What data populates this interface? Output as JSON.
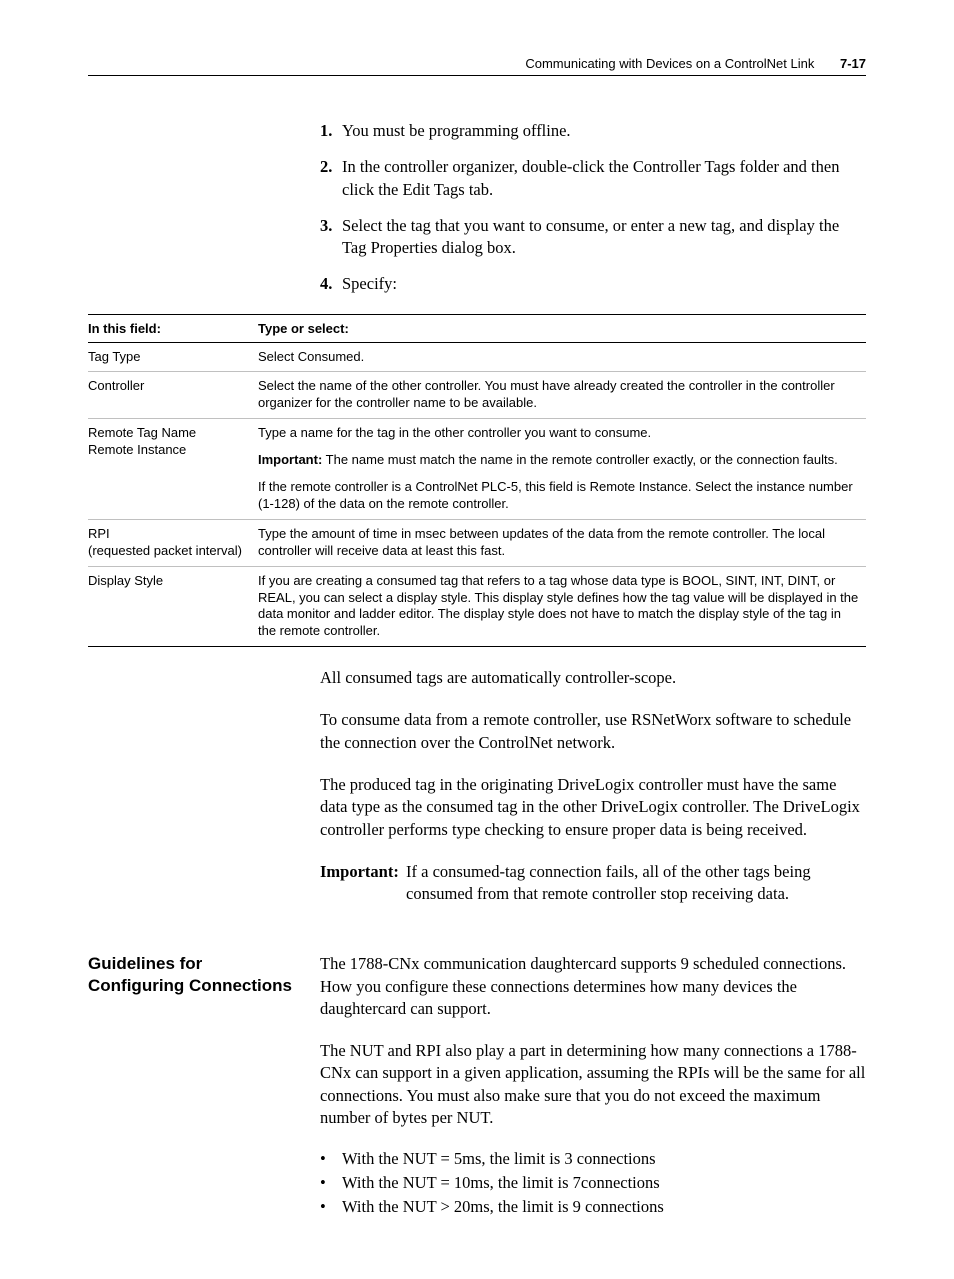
{
  "header": {
    "running_title": "Communicating with Devices on a ControlNet Link",
    "page_label": "7-17"
  },
  "steps": [
    {
      "n": "1.",
      "text": "You must be programming offline."
    },
    {
      "n": "2.",
      "text": "In the controller organizer, double-click the Controller Tags folder and then click the Edit Tags tab."
    },
    {
      "n": "3.",
      "text": "Select the tag that you want to consume, or enter a new tag, and display the Tag Properties dialog box."
    },
    {
      "n": "4.",
      "text": "Specify:"
    }
  ],
  "table": {
    "head_field": "In this field:",
    "head_action": "Type or select:",
    "rows": {
      "tag_type": {
        "field": "Tag Type",
        "action": "Select Consumed."
      },
      "controller": {
        "field": "Controller",
        "action": "Select the name of the other controller. You must have already created the controller in the controller organizer for the controller name to be available."
      },
      "remote": {
        "field_l1": "Remote Tag Name",
        "field_l2": "Remote Instance",
        "a1": "Type a name for the tag in the other controller you want to consume.",
        "a2_label": "Important:",
        "a2_text": " The name must match the name in the remote controller exactly, or the connection faults.",
        "a3": "If the remote controller is a ControlNet PLC-5, this field is Remote Instance. Select the instance number (1-128) of the data on the remote controller."
      },
      "rpi": {
        "field_l1": "RPI",
        "field_l2": "(requested packet interval)",
        "action": "Type the amount of time in msec between updates of the data from the remote controller. The local controller will receive data at least this fast."
      },
      "display": {
        "field": "Display Style",
        "action": "If you are creating a consumed tag that refers to a tag whose data type is BOOL, SINT, INT, DINT, or REAL, you can select a display style. This display style defines how the tag value will be displayed in the data monitor and ladder editor. The display style does not have to match the display style of the tag in the remote controller."
      }
    }
  },
  "body": {
    "p1": "All consumed tags are automatically controller-scope.",
    "p2": "To consume data from a remote controller, use RSNetWorx software to schedule the connection over the ControlNet network.",
    "p3": "The produced tag in the originating DriveLogix controller must have the same data type as the consumed tag in the other DriveLogix controller. The DriveLogix controller performs type checking to ensure proper data is being received.",
    "imp_label": "Important:",
    "imp_text": "If a consumed-tag connection fails, all of the other tags being consumed from that remote controller stop receiving data."
  },
  "section": {
    "heading": "Guidelines for Configuring Connections",
    "p1": "The 1788-CNx communication daughtercard supports 9 scheduled connections. How you configure these connections determines how many devices the daughtercard can support.",
    "p2": "The NUT and RPI also play a part in determining how many connections a 1788-CNx can support in a given application, assuming the RPIs will be the same for all connections. You must also make sure that you do not exceed the maximum number of bytes per NUT.",
    "b1": "With the NUT = 5ms, the limit is 3 connections",
    "b2": "With the NUT = 10ms, the limit is 7connections",
    "b3": "With the NUT > 20ms, the limit is 9 connections"
  }
}
